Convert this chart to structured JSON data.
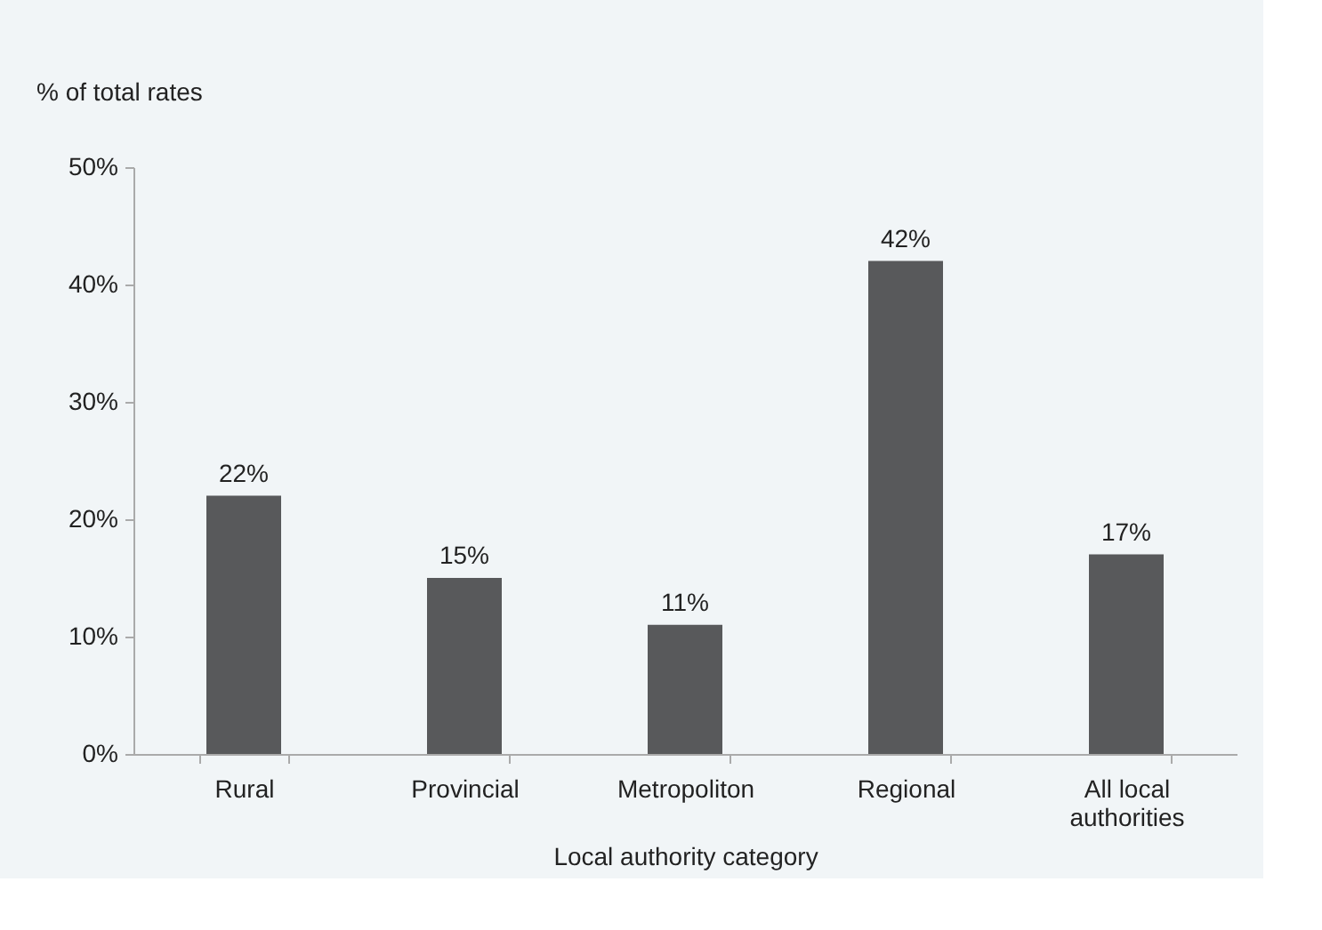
{
  "chart_data": {
    "type": "bar",
    "categories": [
      "Rural",
      "Provincial",
      "Metropoliton",
      "Regional",
      "All local authorities"
    ],
    "values": [
      22,
      15,
      11,
      42,
      17
    ],
    "value_labels": [
      "22%",
      "15%",
      "11%",
      "42%",
      "17%"
    ],
    "color": "#58595b",
    "xlabel": "Local authority category",
    "ylabel": "% of total rates",
    "ylim": [
      0,
      50
    ],
    "yticks": [
      {
        "value": 0,
        "label": "0%"
      },
      {
        "value": 10,
        "label": "10%"
      },
      {
        "value": 20,
        "label": "20%"
      },
      {
        "value": 30,
        "label": "30%"
      },
      {
        "value": 40,
        "label": "40%"
      },
      {
        "value": 50,
        "label": "50%"
      }
    ],
    "grid": false
  }
}
